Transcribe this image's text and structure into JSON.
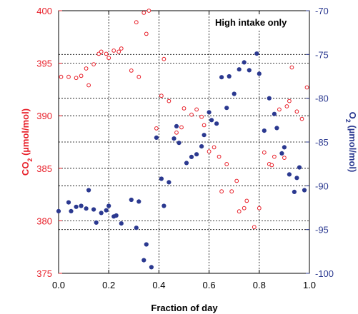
{
  "chart_data": {
    "type": "scatter",
    "annotation": "High intake only",
    "xlabel": "Fraction of day",
    "ylabel_left": {
      "main": "CO",
      "sub": "2",
      "rest": " (µmol/mol)"
    },
    "ylabel_right": {
      "main": "O",
      "sub": "2",
      "rest": " (µmol/mol)"
    },
    "xlim": [
      0,
      1
    ],
    "ylim_left": [
      375,
      400
    ],
    "ylim_right": [
      -100,
      -70
    ],
    "x_ticks": [
      "0.0",
      "0.2",
      "0.4",
      "0.6",
      "0.8",
      "1.0"
    ],
    "y_ticks_left": [
      "375",
      "380",
      "385",
      "390",
      "395",
      "400"
    ],
    "y_ticks_right": [
      "-70",
      "-75",
      "-80",
      "-85",
      "-90",
      "-95",
      "-100"
    ],
    "grid": "dotted",
    "colors": {
      "co2": "#e8202a",
      "o2": "#2b3990"
    },
    "series": [
      {
        "axis": "left",
        "marker": "open-circle",
        "color": "#e8202a",
        "points": [
          [
            0.01,
            393.7
          ],
          [
            0.04,
            393.7
          ],
          [
            0.07,
            393.6
          ],
          [
            0.09,
            393.8
          ],
          [
            0.11,
            394.5
          ],
          [
            0.12,
            392.9
          ],
          [
            0.14,
            394.9
          ],
          [
            0.16,
            395.9
          ],
          [
            0.17,
            396.1
          ],
          [
            0.19,
            395.9
          ],
          [
            0.2,
            395.5
          ],
          [
            0.22,
            396.2
          ],
          [
            0.24,
            396.1
          ],
          [
            0.25,
            396.4
          ],
          [
            0.29,
            394.3
          ],
          [
            0.31,
            398.9
          ],
          [
            0.32,
            393.7
          ],
          [
            0.34,
            399.8
          ],
          [
            0.35,
            397.8
          ],
          [
            0.36,
            400.0
          ],
          [
            0.39,
            388.8
          ],
          [
            0.41,
            391.9
          ],
          [
            0.42,
            395.4
          ],
          [
            0.44,
            391.4
          ],
          [
            0.47,
            388.4
          ],
          [
            0.49,
            388.9
          ],
          [
            0.5,
            390.7
          ],
          [
            0.53,
            390.1
          ],
          [
            0.55,
            390.6
          ],
          [
            0.57,
            389.9
          ],
          [
            0.58,
            389.1
          ],
          [
            0.6,
            386.6
          ],
          [
            0.62,
            387.0
          ],
          [
            0.64,
            386.1
          ],
          [
            0.65,
            382.8
          ],
          [
            0.67,
            385.4
          ],
          [
            0.69,
            382.8
          ],
          [
            0.71,
            383.8
          ],
          [
            0.72,
            380.9
          ],
          [
            0.74,
            381.2
          ],
          [
            0.75,
            381.9
          ],
          [
            0.78,
            379.4
          ],
          [
            0.8,
            381.2
          ],
          [
            0.82,
            386.5
          ],
          [
            0.84,
            385.4
          ],
          [
            0.85,
            385.3
          ],
          [
            0.86,
            386.1
          ],
          [
            0.88,
            390.6
          ],
          [
            0.9,
            386.0
          ],
          [
            0.91,
            390.9
          ],
          [
            0.92,
            391.4
          ],
          [
            0.93,
            394.6
          ],
          [
            0.95,
            390.4
          ],
          [
            0.97,
            389.7
          ],
          [
            0.99,
            392.7
          ]
        ]
      },
      {
        "axis": "right",
        "marker": "filled-circle",
        "color": "#2b3990",
        "points": [
          [
            0.0,
            -92.9
          ],
          [
            0.04,
            -91.9
          ],
          [
            0.05,
            -92.9
          ],
          [
            0.07,
            -92.4
          ],
          [
            0.09,
            -92.3
          ],
          [
            0.11,
            -92.6
          ],
          [
            0.12,
            -90.5
          ],
          [
            0.14,
            -92.7
          ],
          [
            0.15,
            -94.2
          ],
          [
            0.17,
            -93.1
          ],
          [
            0.19,
            -92.8
          ],
          [
            0.2,
            -92.3
          ],
          [
            0.22,
            -93.5
          ],
          [
            0.23,
            -93.4
          ],
          [
            0.25,
            -94.3
          ],
          [
            0.29,
            -91.6
          ],
          [
            0.31,
            -94.8
          ],
          [
            0.32,
            -91.8
          ],
          [
            0.35,
            -96.7
          ],
          [
            0.34,
            -98.5
          ],
          [
            0.37,
            -99.3
          ],
          [
            0.39,
            -84.5
          ],
          [
            0.41,
            -89.2
          ],
          [
            0.42,
            -92.3
          ],
          [
            0.44,
            -89.6
          ],
          [
            0.46,
            -84.6
          ],
          [
            0.47,
            -83.2
          ],
          [
            0.48,
            -85.1
          ],
          [
            0.51,
            -87.4
          ],
          [
            0.53,
            -86.7
          ],
          [
            0.55,
            -86.4
          ],
          [
            0.57,
            -85.5
          ],
          [
            0.58,
            -84.2
          ],
          [
            0.6,
            -81.6
          ],
          [
            0.61,
            -82.5
          ],
          [
            0.63,
            -82.9
          ],
          [
            0.65,
            -77.6
          ],
          [
            0.67,
            -81.1
          ],
          [
            0.68,
            -77.5
          ],
          [
            0.7,
            -79.5
          ],
          [
            0.72,
            -76.7
          ],
          [
            0.74,
            -75.9
          ],
          [
            0.76,
            -76.8
          ],
          [
            0.79,
            -74.9
          ],
          [
            0.8,
            -77.2
          ],
          [
            0.82,
            -83.7
          ],
          [
            0.84,
            -80.0
          ],
          [
            0.86,
            -81.8
          ],
          [
            0.87,
            -83.4
          ],
          [
            0.89,
            -86.3
          ],
          [
            0.9,
            -85.6
          ],
          [
            0.92,
            -88.7
          ],
          [
            0.94,
            -90.7
          ],
          [
            0.95,
            -89.1
          ],
          [
            0.96,
            -87.9
          ],
          [
            0.98,
            -90.5
          ]
        ]
      }
    ]
  }
}
